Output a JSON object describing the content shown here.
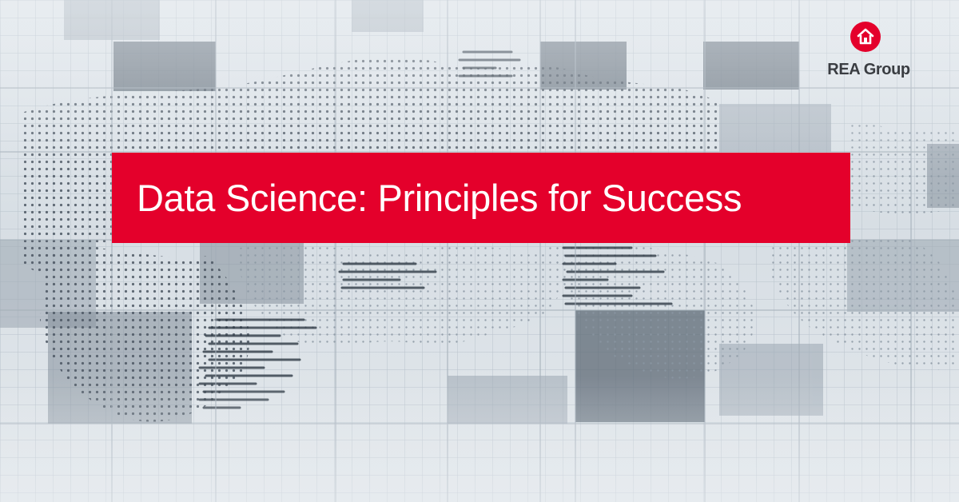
{
  "banner": {
    "title": "Data Science: Principles for Success",
    "background_color": "#e4002b",
    "text_color": "#ffffff"
  },
  "logo": {
    "name": "REA Group",
    "icon": "house-icon",
    "mark_color": "#e4002b"
  },
  "background": {
    "description_icon": "world-map-data-grid",
    "tint": "#dfe5ea"
  }
}
